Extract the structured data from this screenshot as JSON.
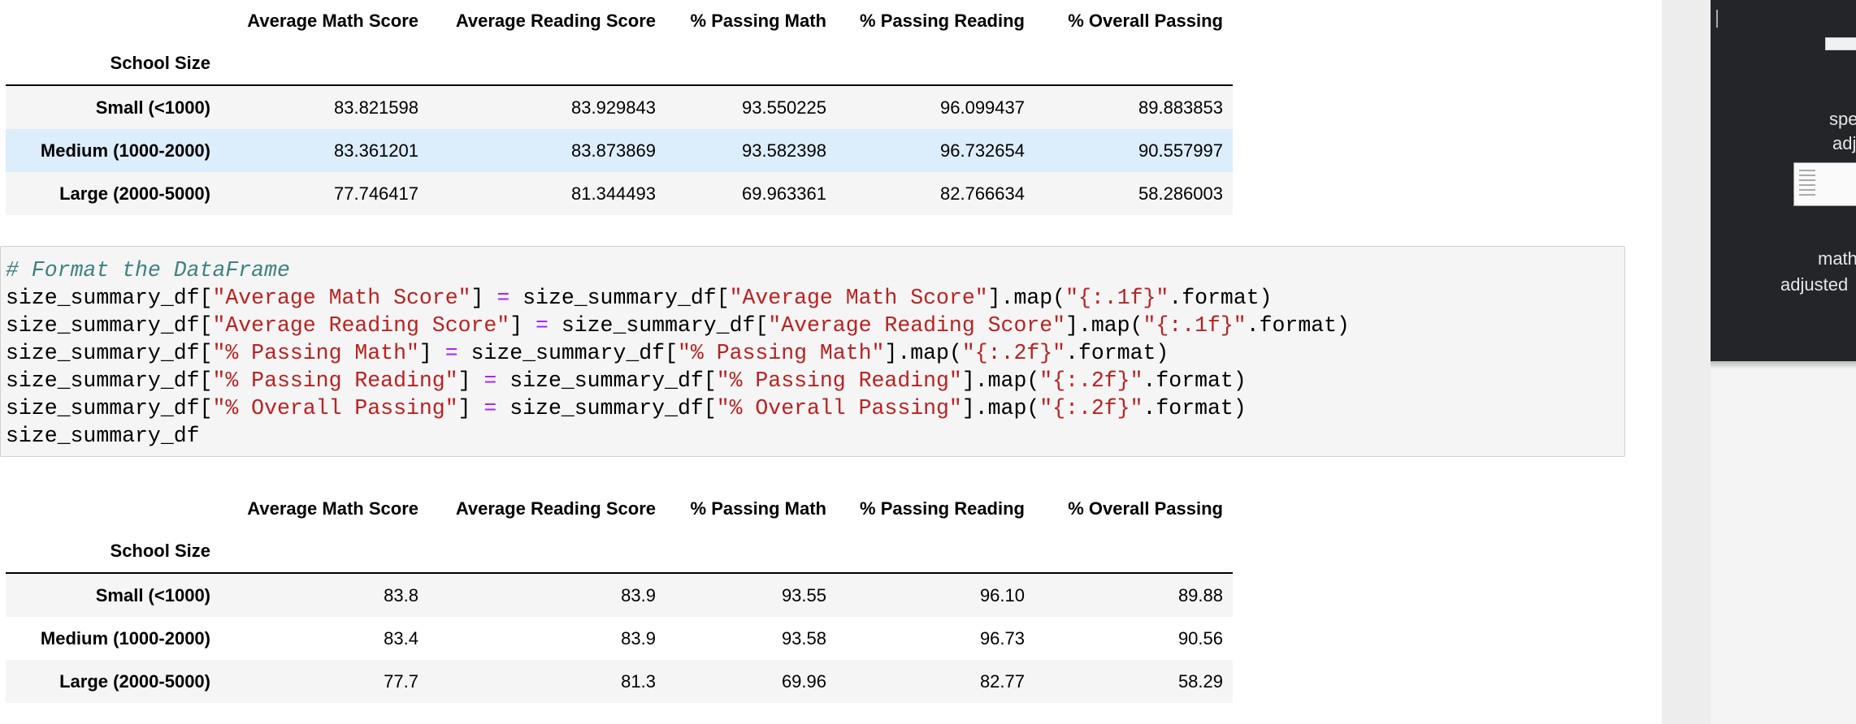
{
  "table_before": {
    "columns": [
      "Average Math Score",
      "Average Reading Score",
      "% Passing Math",
      "% Passing Reading",
      "% Overall Passing"
    ],
    "index_name": "School Size",
    "rows": [
      {
        "label": "Small (<1000)",
        "values": [
          "83.821598",
          "83.929843",
          "93.550225",
          "96.099437",
          "89.883853"
        ]
      },
      {
        "label": "Medium (1000-2000)",
        "values": [
          "83.361201",
          "83.873869",
          "93.582398",
          "96.732654",
          "90.557997"
        ]
      },
      {
        "label": "Large (2000-5000)",
        "values": [
          "77.746417",
          "81.344493",
          "69.963361",
          "82.766634",
          "58.286003"
        ]
      }
    ]
  },
  "code_cell": {
    "comment": "# Format the DataFrame",
    "df": "size_summary_df",
    "lines": [
      {
        "col": "\"Average Math Score\"",
        "fmt": "\"{:.1f}\""
      },
      {
        "col": "\"Average Reading Score\"",
        "fmt": "\"{:.1f}\""
      },
      {
        "col": "\"% Passing Math\"",
        "fmt": "\"{:.2f}\""
      },
      {
        "col": "\"% Passing Reading\"",
        "fmt": "\"{:.2f}\""
      },
      {
        "col": "\"% Overall Passing\"",
        "fmt": "\"{:.2f}\""
      }
    ],
    "map_call": "].map(",
    "format_suffix": ".format)",
    "last_line": "size_summary_df"
  },
  "table_after": {
    "columns": [
      "Average Math Score",
      "Average Reading Score",
      "% Passing Math",
      "% Passing Reading",
      "% Overall Passing"
    ],
    "index_name": "School Size",
    "rows": [
      {
        "label": "Small (<1000)",
        "values": [
          "83.8",
          "83.9",
          "93.55",
          "96.10",
          "89.88"
        ]
      },
      {
        "label": "Medium (1000-2000)",
        "values": [
          "83.4",
          "83.9",
          "93.58",
          "96.73",
          "90.56"
        ]
      },
      {
        "label": "Large (2000-5000)",
        "values": [
          "77.7",
          "81.3",
          "69.96",
          "82.77",
          "58.29"
        ]
      }
    ]
  },
  "side_panel": {
    "text1": "spe",
    "text2": "adj",
    "text3": "math",
    "text4": "adjusted"
  }
}
